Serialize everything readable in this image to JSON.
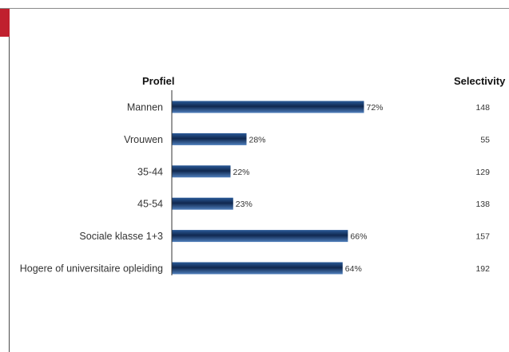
{
  "chart_data": {
    "type": "bar",
    "orientation": "horizontal",
    "column_headers": {
      "category": "Profiel",
      "selectivity": "Selectivity"
    },
    "categories": [
      "Mannen",
      "Vrouwen",
      "35-44",
      "45-54",
      "Sociale klasse 1+3",
      "Hogere of universitaire opleiding"
    ],
    "values": [
      72,
      28,
      22,
      23,
      66,
      64
    ],
    "value_labels": [
      "72%",
      "28%",
      "22%",
      "23%",
      "66%",
      "64%"
    ],
    "selectivity": [
      "148",
      "55",
      "129",
      "138",
      "157",
      "192"
    ],
    "xlim": [
      0,
      100
    ],
    "unit": "%",
    "grid": false,
    "legend": "none",
    "colors": {
      "bar_dark": "#10284f",
      "bar_mid": "#2a5a98",
      "bar_light": "#4f7fbc",
      "accent": "#c0202e",
      "axis": "#333333"
    }
  }
}
